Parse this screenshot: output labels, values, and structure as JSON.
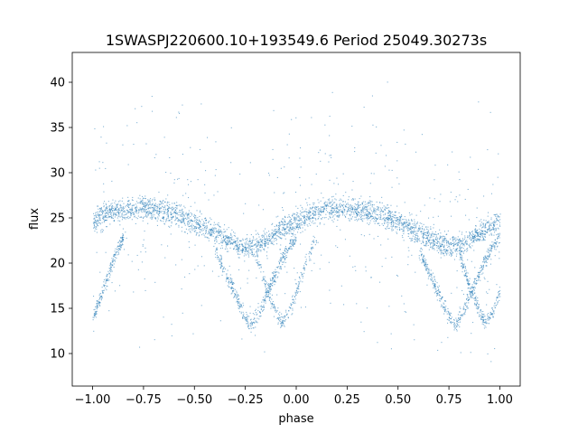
{
  "chart_data": {
    "type": "scatter",
    "title": "1SWASPJ220600.10+193549.6 Period 25049.30273s",
    "xlabel": "phase",
    "ylabel": "flux",
    "xlim": [
      -1.1,
      1.1
    ],
    "ylim": [
      6.4,
      43.3
    ],
    "xticks": [
      -1.0,
      -0.75,
      -0.5,
      -0.25,
      0.0,
      0.25,
      0.5,
      0.75,
      1.0
    ],
    "xtick_labels": [
      "−1.00",
      "−0.75",
      "−0.50",
      "−0.25",
      "0.00",
      "0.25",
      "0.50",
      "0.75",
      "1.00"
    ],
    "yticks": [
      10,
      15,
      20,
      25,
      30,
      35,
      40
    ],
    "ytick_labels": [
      "10",
      "15",
      "20",
      "25",
      "30",
      "35",
      "40"
    ],
    "grid": false,
    "marker_color": "#1f77b4",
    "series": [
      {
        "description_key": "main-band",
        "points": [
          [
            -1.0,
            24.6
          ],
          [
            -0.95,
            25.3
          ],
          [
            -0.9,
            25.7
          ],
          [
            -0.85,
            25.9
          ],
          [
            -0.8,
            26.0
          ],
          [
            -0.75,
            26.1
          ],
          [
            -0.7,
            26.0
          ],
          [
            -0.65,
            25.8
          ],
          [
            -0.6,
            25.5
          ],
          [
            -0.55,
            25.1
          ],
          [
            -0.5,
            24.6
          ],
          [
            -0.45,
            24.0
          ],
          [
            -0.4,
            23.4
          ],
          [
            -0.35,
            22.8
          ],
          [
            -0.3,
            22.2
          ],
          [
            -0.25,
            21.8
          ],
          [
            -0.2,
            22.0
          ],
          [
            -0.15,
            22.6
          ],
          [
            -0.1,
            23.4
          ],
          [
            -0.05,
            24.2
          ],
          [
            0.0,
            24.6
          ],
          [
            0.05,
            25.3
          ],
          [
            0.1,
            25.7
          ],
          [
            0.15,
            25.9
          ],
          [
            0.2,
            26.0
          ],
          [
            0.25,
            26.1
          ],
          [
            0.3,
            26.0
          ],
          [
            0.35,
            25.8
          ],
          [
            0.4,
            25.5
          ],
          [
            0.45,
            25.1
          ],
          [
            0.5,
            24.6
          ],
          [
            0.55,
            24.0
          ],
          [
            0.6,
            23.4
          ],
          [
            0.65,
            22.8
          ],
          [
            0.7,
            22.2
          ],
          [
            0.75,
            21.8
          ],
          [
            0.8,
            22.0
          ],
          [
            0.85,
            22.6
          ],
          [
            0.9,
            23.4
          ],
          [
            0.95,
            24.2
          ],
          [
            1.0,
            24.6
          ]
        ]
      },
      {
        "description_key": "primary-eclipse",
        "points": [
          [
            -0.4,
            21.5
          ],
          [
            -0.35,
            19.0
          ],
          [
            -0.3,
            16.5
          ],
          [
            -0.25,
            14.0
          ],
          [
            -0.22,
            13.2
          ],
          [
            -0.18,
            14.8
          ],
          [
            -0.12,
            18.0
          ],
          [
            -0.06,
            21.0
          ],
          [
            0.0,
            23.0
          ],
          [
            0.6,
            21.5
          ],
          [
            0.65,
            19.0
          ],
          [
            0.7,
            16.5
          ],
          [
            0.75,
            14.0
          ],
          [
            0.78,
            13.2
          ],
          [
            0.82,
            14.8
          ],
          [
            0.88,
            18.0
          ],
          [
            0.94,
            21.0
          ],
          [
            1.0,
            23.0
          ]
        ]
      },
      {
        "description_key": "secondary-dip",
        "points": [
          [
            -1.0,
            14.0
          ],
          [
            -0.95,
            17.0
          ],
          [
            -0.9,
            20.5
          ],
          [
            -0.85,
            23.0
          ],
          [
            -0.2,
            21.0
          ],
          [
            -0.15,
            17.5
          ],
          [
            -0.1,
            14.5
          ],
          [
            -0.07,
            13.5
          ],
          [
            -0.03,
            15.0
          ],
          [
            0.0,
            17.0
          ],
          [
            0.05,
            20.5
          ],
          [
            0.1,
            23.0
          ],
          [
            0.8,
            21.0
          ],
          [
            0.85,
            17.5
          ],
          [
            0.9,
            14.5
          ],
          [
            0.93,
            13.5
          ],
          [
            0.97,
            15.0
          ],
          [
            1.0,
            17.0
          ]
        ]
      }
    ]
  }
}
